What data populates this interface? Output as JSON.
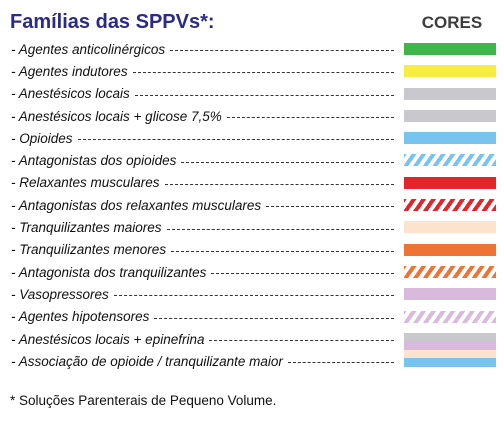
{
  "header": {
    "title": "Famílias das SPPVs*:",
    "title_color": "#2b2a86",
    "colors_heading": "CORES",
    "colors_heading_color": "#3d3d3d"
  },
  "rows": [
    {
      "label": "- Agentes anticolinérgicos",
      "pattern": "solid",
      "colors": [
        "#3fb54a"
      ]
    },
    {
      "label": "- Agentes indutores",
      "pattern": "solid",
      "colors": [
        "#f7ec42"
      ]
    },
    {
      "label": "- Anestésicos locais",
      "pattern": "solid",
      "colors": [
        "#c9c9cd"
      ]
    },
    {
      "label": "- Anestésicos locais + glicose 7,5%",
      "pattern": "solid",
      "colors": [
        "#c9c9cd"
      ]
    },
    {
      "label": "- Opioides",
      "pattern": "solid",
      "colors": [
        "#79c4ee"
      ]
    },
    {
      "label": "- Antagonistas dos opioides",
      "pattern": "stripes",
      "colors": [
        "#79c4ee",
        "#ffffff"
      ]
    },
    {
      "label": "- Relaxantes musculares",
      "pattern": "solid",
      "colors": [
        "#e3242b"
      ]
    },
    {
      "label": "- Antagonistas dos relaxantes musculares",
      "pattern": "stripes",
      "colors": [
        "#e3242b",
        "#ffffff"
      ]
    },
    {
      "label": "- Tranquilizantes maiores",
      "pattern": "solid",
      "colors": [
        "#fde3cd"
      ]
    },
    {
      "label": "- Tranquilizantes menores",
      "pattern": "solid",
      "colors": [
        "#f07336"
      ]
    },
    {
      "label": "- Antagonista dos tranquilizantes",
      "pattern": "stripes",
      "colors": [
        "#f07336",
        "#ffffff"
      ]
    },
    {
      "label": "- Vasopressores",
      "pattern": "solid",
      "colors": [
        "#d9b9dc"
      ]
    },
    {
      "label": "- Agentes hipotensores",
      "pattern": "stripes",
      "colors": [
        "#d9b9dc",
        "#ffffff"
      ]
    },
    {
      "label": "- Anestésicos locais + epinefrina",
      "pattern": "bands",
      "colors": [
        "#c9c9cd",
        "#d9b9dc",
        "#fde3cd",
        "#79c4ee"
      ]
    },
    {
      "label": "- Associação de opioide / tranquilizante maior",
      "pattern": "none",
      "colors": []
    }
  ],
  "footnote": "* Soluções Parenterais de Pequeno Volume."
}
